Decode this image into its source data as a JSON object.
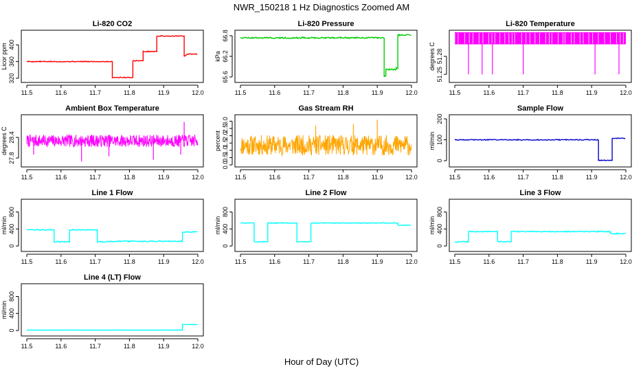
{
  "figure": {
    "title": "NWR_150218  1 Hz Diagnostics Zoomed AM",
    "xlabel": "Hour of Day (UTC)"
  },
  "colors": {
    "red": "#ff0000",
    "green": "#00cc00",
    "magenta": "#ff00ff",
    "orange": "#ffa500",
    "blue": "#0000cc",
    "cyan": "#00ffff"
  },
  "chart_data": [
    {
      "type": "line",
      "title": "Li-820 CO2",
      "ylabel": "Licor ppm",
      "color": "red",
      "xlim": [
        11.5,
        12.0
      ],
      "ylim": [
        315,
        430
      ],
      "xticks": [
        "11.5",
        "11.6",
        "11.7",
        "11.8",
        "11.9",
        "12.0"
      ],
      "yticks": [
        {
          "v": 320,
          "label": "320"
        },
        {
          "v": 360,
          "label": "360"
        },
        {
          "v": 400,
          "label": "400"
        }
      ],
      "style": "step",
      "noise": 1,
      "x": [
        11.5,
        11.75,
        11.75,
        11.76,
        11.76,
        11.81,
        11.81,
        11.84,
        11.84,
        11.88,
        11.88,
        11.96,
        11.96,
        11.97,
        12.0
      ],
      "y": [
        360,
        360,
        322,
        322,
        322,
        322,
        362,
        362,
        384,
        384,
        421,
        421,
        372,
        378,
        378
      ]
    },
    {
      "type": "line",
      "title": "Li-820 Pressure",
      "ylabel": "kPa",
      "color": "green",
      "xlim": [
        11.5,
        12.0
      ],
      "ylim": [
        65.5,
        66.9
      ],
      "xticks": [
        "11.5",
        "11.6",
        "11.7",
        "11.8",
        "11.9",
        "12.0"
      ],
      "yticks": [
        {
          "v": 65.6,
          "label": "65.6"
        },
        {
          "v": 66.2,
          "label": "66.2"
        },
        {
          "v": 66.8,
          "label": "66.8"
        }
      ],
      "style": "step",
      "noise": 0.02,
      "x": [
        11.5,
        11.92,
        11.92,
        11.925,
        11.925,
        11.955,
        11.955,
        11.96,
        11.96,
        11.965,
        12.0
      ],
      "y": [
        66.74,
        66.74,
        65.62,
        65.62,
        65.82,
        65.82,
        65.85,
        65.85,
        66.82,
        66.82,
        66.82
      ]
    },
    {
      "type": "line",
      "title": "Li-820 Temperature",
      "ylabel": "degrees C",
      "color": "magenta",
      "xlim": [
        11.5,
        12.0
      ],
      "ylim": [
        51.24,
        51.32
      ],
      "xticks": [
        "11.5",
        "11.6",
        "11.7",
        "11.8",
        "11.9",
        "12.0"
      ],
      "yticks": [
        {
          "v": 51.25,
          "label": "51.25"
        },
        {
          "v": 51.28,
          "label": "51.28"
        }
      ],
      "style": "band",
      "band": [
        51.3,
        51.32
      ],
      "spikes": [
        11.54,
        11.58,
        11.61,
        11.7,
        11.91,
        11.98
      ],
      "spike_to": 51.25
    },
    {
      "type": "line",
      "title": "Ambient Box Temperature",
      "ylabel": "degrees C",
      "color": "magenta",
      "xlim": [
        11.5,
        12.0
      ],
      "ylim": [
        27.6,
        29.0
      ],
      "xticks": [
        "11.5",
        "11.6",
        "11.7",
        "11.8",
        "11.9",
        "12.0"
      ],
      "yticks": [
        {
          "v": 27.8,
          "label": "27.8"
        },
        {
          "v": 28.4,
          "label": "28.4"
        }
      ],
      "style": "noise",
      "center": 28.3,
      "amp": 0.18,
      "seed": 7,
      "spikes_down": [
        [
          11.52,
          27.9
        ],
        [
          11.66,
          27.7
        ],
        [
          11.74,
          27.85
        ],
        [
          11.87,
          27.75
        ],
        [
          11.95,
          27.9
        ]
      ],
      "spikes_up": [
        [
          11.96,
          28.85
        ]
      ]
    },
    {
      "type": "line",
      "title": "Gas Stream RH",
      "ylabel": "percent",
      "color": "orange",
      "xlim": [
        11.5,
        12.0
      ],
      "ylim": [
        0,
        3.3
      ],
      "xticks": [
        "11.5",
        "11.6",
        "11.7",
        "11.8",
        "11.9",
        "12.0"
      ],
      "yticks": [
        {
          "v": 0.0,
          "label": "0.0"
        },
        {
          "v": 0.5,
          "label": "0.5"
        },
        {
          "v": 1.0,
          "label": "1.0"
        },
        {
          "v": 1.5,
          "label": "1.5"
        },
        {
          "v": 2.0,
          "label": "2.0"
        },
        {
          "v": 2.5,
          "label": "2.5"
        },
        {
          "v": 3.0,
          "label": "3.0"
        }
      ],
      "style": "noise",
      "center": 1.35,
      "amp": 0.7,
      "seed": 11,
      "spikes_up": [
        [
          11.9,
          3.1
        ],
        [
          11.83,
          2.8
        ],
        [
          11.72,
          2.7
        ]
      ]
    },
    {
      "type": "line",
      "title": "Sample Flow",
      "ylabel": "ml/min",
      "color": "blue",
      "xlim": [
        11.5,
        12.0
      ],
      "ylim": [
        -20,
        210
      ],
      "xticks": [
        "11.5",
        "11.6",
        "11.7",
        "11.8",
        "11.9",
        "12.0"
      ],
      "yticks": [
        {
          "v": 0,
          "label": "0"
        },
        {
          "v": 100,
          "label": "100"
        },
        {
          "v": 200,
          "label": "200"
        }
      ],
      "style": "step",
      "noise": 2,
      "x": [
        11.5,
        11.92,
        11.92,
        11.96,
        11.96,
        12.0
      ],
      "y": [
        100,
        100,
        2,
        2,
        107,
        107
      ]
    },
    {
      "type": "line",
      "title": "Line 1 Flow",
      "ylabel": "ml/min",
      "color": "cyan",
      "xlim": [
        11.5,
        12.0
      ],
      "ylim": [
        -80,
        1050
      ],
      "xticks": [
        "11.5",
        "11.6",
        "11.7",
        "11.8",
        "11.9",
        "12.0"
      ],
      "yticks": [
        {
          "v": 0,
          "label": "0"
        },
        {
          "v": 400,
          "label": "400"
        },
        {
          "v": 800,
          "label": "800"
        }
      ],
      "style": "step",
      "noise": 12,
      "x": [
        11.5,
        11.58,
        11.58,
        11.625,
        11.625,
        11.706,
        11.706,
        11.75,
        11.75,
        11.955,
        11.955,
        12.0
      ],
      "y": [
        380,
        380,
        100,
        100,
        380,
        380,
        100,
        100,
        110,
        110,
        330,
        330
      ]
    },
    {
      "type": "line",
      "title": "Line 2 Flow",
      "ylabel": "ml/min",
      "color": "cyan",
      "xlim": [
        11.5,
        12.0
      ],
      "ylim": [
        -80,
        1050
      ],
      "xticks": [
        "11.5",
        "11.6",
        "11.7",
        "11.8",
        "11.9",
        "12.0"
      ],
      "yticks": [
        {
          "v": 0,
          "label": "0"
        },
        {
          "v": 400,
          "label": "400"
        },
        {
          "v": 800,
          "label": "800"
        }
      ],
      "style": "step",
      "noise": 8,
      "x": [
        11.5,
        11.54,
        11.54,
        11.58,
        11.58,
        11.665,
        11.665,
        11.706,
        11.706,
        11.96,
        11.96,
        12.0
      ],
      "y": [
        540,
        540,
        100,
        100,
        540,
        540,
        100,
        100,
        540,
        540,
        490,
        490
      ]
    },
    {
      "type": "line",
      "title": "Line 3 Flow",
      "ylabel": "ml/min",
      "color": "cyan",
      "xlim": [
        11.5,
        12.0
      ],
      "ylim": [
        -80,
        1050
      ],
      "xticks": [
        "11.5",
        "11.6",
        "11.7",
        "11.8",
        "11.9",
        "12.0"
      ],
      "yticks": [
        {
          "v": 0,
          "label": "0"
        },
        {
          "v": 400,
          "label": "400"
        },
        {
          "v": 800,
          "label": "800"
        }
      ],
      "style": "step",
      "noise": 12,
      "x": [
        11.5,
        11.54,
        11.54,
        11.625,
        11.625,
        11.665,
        11.665,
        11.955,
        11.955,
        12.0
      ],
      "y": [
        100,
        100,
        340,
        340,
        100,
        100,
        340,
        340,
        290,
        290
      ]
    },
    {
      "type": "line",
      "title": "Line 4 (LT) Flow",
      "ylabel": "ml/min",
      "color": "cyan",
      "xlim": [
        11.5,
        12.0
      ],
      "ylim": [
        -80,
        1050
      ],
      "xticks": [
        "11.5",
        "11.6",
        "11.7",
        "11.8",
        "11.9",
        "12.0"
      ],
      "yticks": [
        {
          "v": 0,
          "label": "0"
        },
        {
          "v": 400,
          "label": "400"
        },
        {
          "v": 800,
          "label": "800"
        }
      ],
      "style": "step",
      "noise": 2,
      "x": [
        11.5,
        11.955,
        11.955,
        12.0
      ],
      "y": [
        10,
        10,
        140,
        140
      ]
    }
  ]
}
